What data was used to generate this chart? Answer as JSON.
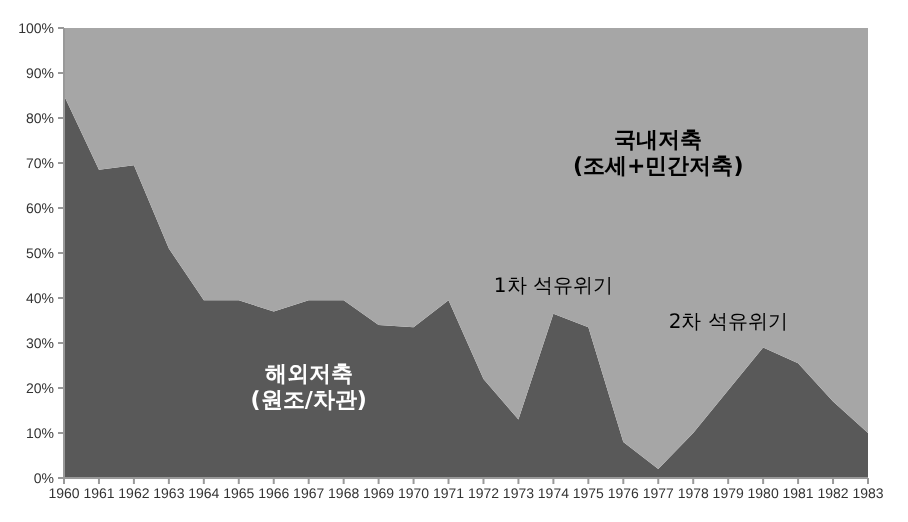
{
  "chart_data": {
    "type": "area",
    "stacked": true,
    "categories": [
      "1960",
      "1961",
      "1962",
      "1963",
      "1964",
      "1965",
      "1966",
      "1967",
      "1968",
      "1969",
      "1970",
      "1971",
      "1972",
      "1973",
      "1974",
      "1975",
      "1976",
      "1977",
      "1978",
      "1979",
      "1980",
      "1981",
      "1982",
      "1983"
    ],
    "series": [
      {
        "name": "해외저축\n(원조/차관)",
        "color": "#595959",
        "values": [
          85,
          68.5,
          69.5,
          51,
          39.5,
          39.5,
          37,
          39.5,
          39.5,
          34,
          33.5,
          39.5,
          22,
          13,
          36.5,
          33.5,
          8,
          2,
          10,
          19.5,
          29,
          25.5,
          17,
          10
        ]
      },
      {
        "name": "국내저축\n(조세+민간저축)",
        "color": "#a6a6a6",
        "values": [
          15,
          31.5,
          30.5,
          49,
          60.5,
          60.5,
          63,
          60.5,
          60.5,
          66,
          66.5,
          60.5,
          78,
          87,
          63.5,
          66.5,
          92,
          98,
          90,
          80.5,
          71,
          74.5,
          83,
          90
        ]
      }
    ],
    "ylim": [
      0,
      100
    ],
    "yticks": [
      {
        "value": 0,
        "label": "0%"
      },
      {
        "value": 10,
        "label": "10%"
      },
      {
        "value": 20,
        "label": "20%"
      },
      {
        "value": 30,
        "label": "30%"
      },
      {
        "value": 40,
        "label": "40%"
      },
      {
        "value": 50,
        "label": "50%"
      },
      {
        "value": 60,
        "label": "60%"
      },
      {
        "value": 70,
        "label": "70%"
      },
      {
        "value": 80,
        "label": "80%"
      },
      {
        "value": 90,
        "label": "90%"
      },
      {
        "value": 100,
        "label": "100%"
      }
    ],
    "annotations": [
      "1차 석유위기",
      "2차 석유위기"
    ],
    "grid": false,
    "legend": false
  }
}
